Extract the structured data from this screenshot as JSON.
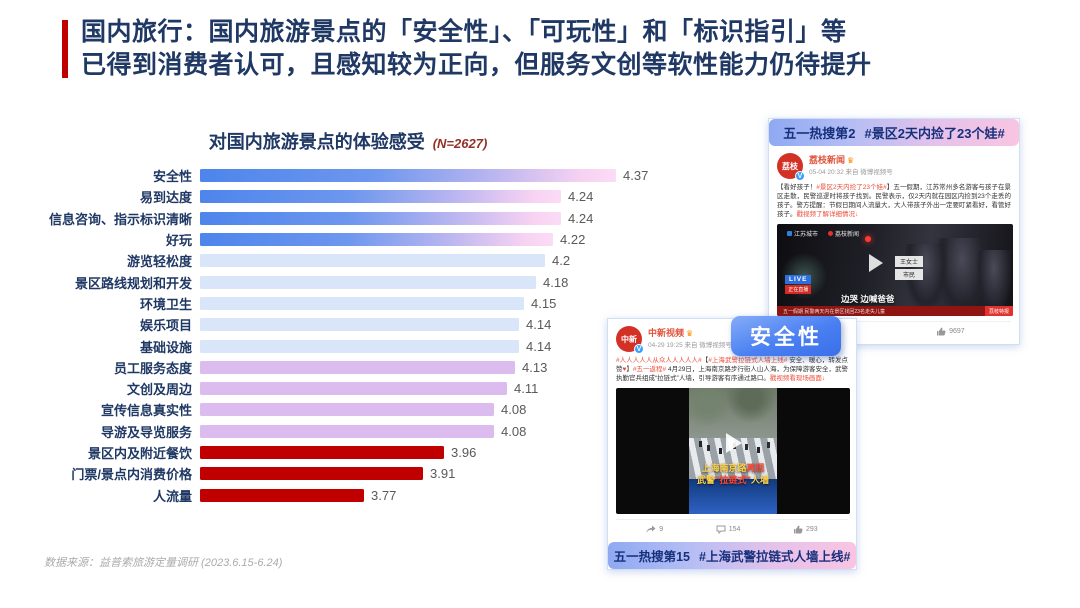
{
  "slide": {
    "title_line1": "国内旅行：国内旅游景点的「安全性」、「可玩性」和「标识指引」等",
    "title_line2": "已得到消费者认可，且感知较为正向，但服务文创等软性能力仍待提升",
    "source": "数据来源：益普索旅游定量调研 (2023.6.15-6.24)",
    "accent_color": "#C00000"
  },
  "chart_data": {
    "type": "bar",
    "orientation": "horizontal",
    "title": "对国内旅游景点的体验感受",
    "subtitle": "(N=2627)",
    "categories": [
      "安全性",
      "易到达度",
      "信息咨询、指示标识清晰",
      "好玩",
      "游览轻松度",
      "景区路线规划和开发",
      "环境卫生",
      "娱乐项目",
      "基础设施",
      "员工服务态度",
      "文创及周边",
      "宣传信息真实性",
      "导游及导览服务",
      "景区内及附近餐饮",
      "门票/景点内消费价格",
      "人流量"
    ],
    "values": [
      4.37,
      4.24,
      4.24,
      4.22,
      4.2,
      4.18,
      4.15,
      4.14,
      4.14,
      4.13,
      4.11,
      4.08,
      4.08,
      3.96,
      3.91,
      3.77
    ],
    "value_labels": [
      "4.37",
      "4.24",
      "4.24",
      "4.22",
      "4.2",
      "4.18",
      "4.15",
      "4.14",
      "4.14",
      "4.13",
      "4.11",
      "4.08",
      "4.08",
      "3.96",
      "3.91",
      "3.77"
    ],
    "bar_styles": [
      "gradient",
      "gradient",
      "gradient",
      "gradient",
      "blue",
      "blue",
      "blue",
      "blue",
      "blue",
      "purple",
      "purple",
      "purple",
      "purple",
      "red",
      "red",
      "red"
    ],
    "value_axis": {
      "min": 3.38,
      "max": 4.37
    },
    "grid": false,
    "legend": false,
    "colors": {
      "gradient_start": "#4d85ec",
      "gradient_end": "#fbdcf5",
      "light_blue": "#d9e5f8",
      "purple": "#dcbcee",
      "red": "#C00000",
      "label": "#1F3864",
      "value_text": "#595959"
    }
  },
  "badge": {
    "label": "安全性"
  },
  "cards": {
    "top": {
      "banner": {
        "rank": "五一热搜第2",
        "hashtag": "#景区2天内捡了23个娃#"
      },
      "post": {
        "avatar": "荔枝",
        "verified": "V",
        "username": "荔枝新闻",
        "vip": "♛",
        "meta": "05-04 20:32 来自 微博视频号",
        "segments": [
          {
            "t": "【看好孩子！",
            "c": "d"
          },
          {
            "t": "#景区2天内捡了23个娃#",
            "c": "red"
          },
          {
            "t": "】五一假期，江苏常州多名游客与孩子在景区走散，民警巡逻时将孩子找到。民警表示，仅2天内就在园区内捡到23个走丢的孩子。警方提醒：节假日期间人流量大，大人带孩子外出一定要盯紧看好，看管好孩子。",
            "c": "d"
          },
          {
            "t": "戳视频了解详细情况↓",
            "c": "red"
          }
        ],
        "video": {
          "logo1": "江苏城市",
          "logo2": "荔枝新闻",
          "tag1": "王女士",
          "tag2": "市民",
          "live": "LIVE",
          "live_sub": "正在直播",
          "caption": "边哭 边喊爸爸",
          "ticker": "五一假期 民警两天内在景区找回23名走失儿童",
          "ticker_tag": "荔枝特报"
        },
        "stats": {
          "comments": "1142",
          "likes": "9697"
        }
      }
    },
    "bottom": {
      "post": {
        "avatar": "中新",
        "verified": "V",
        "username": "中新视频",
        "vip": "♛",
        "meta": "04-29 19:25 来自 微博视频号",
        "segments": [
          {
            "t": "#人人人人人从众人人人人人#",
            "c": "red"
          },
          {
            "t": "【",
            "c": "d"
          },
          {
            "t": "#上海武警拉链式人墙上线#",
            "c": "red"
          },
          {
            "t": " 安全、暖心，转发点赞",
            "c": "d"
          },
          {
            "t": "♥",
            "c": "red"
          },
          {
            "t": "】",
            "c": "d"
          },
          {
            "t": "#五一返程#",
            "c": "red"
          },
          {
            "t": " 4月29日，上海南京路步行街人山人海，为保障游客安全，武警执勤官兵组成“拉链式”人墙，引导游客有序通过路口。",
            "c": "d"
          },
          {
            "t": "戳视频看现场画面↓",
            "c": "red"
          }
        ],
        "video": {
          "caption1": [
            {
              "t": "上海南京路",
              "c": "y"
            },
            {
              "t": "再现",
              "c": "r"
            }
          ],
          "caption2": [
            {
              "t": "武警",
              "c": "y"
            },
            {
              "t": "“拉链式”",
              "c": "r"
            },
            {
              "t": "人墙",
              "c": "y"
            }
          ]
        },
        "stats": {
          "shares": "9",
          "comments": "154",
          "likes": "293"
        }
      },
      "banner": {
        "rank": "五一热搜第15",
        "hashtag": "#上海武警拉链式人墙上线#"
      }
    }
  }
}
